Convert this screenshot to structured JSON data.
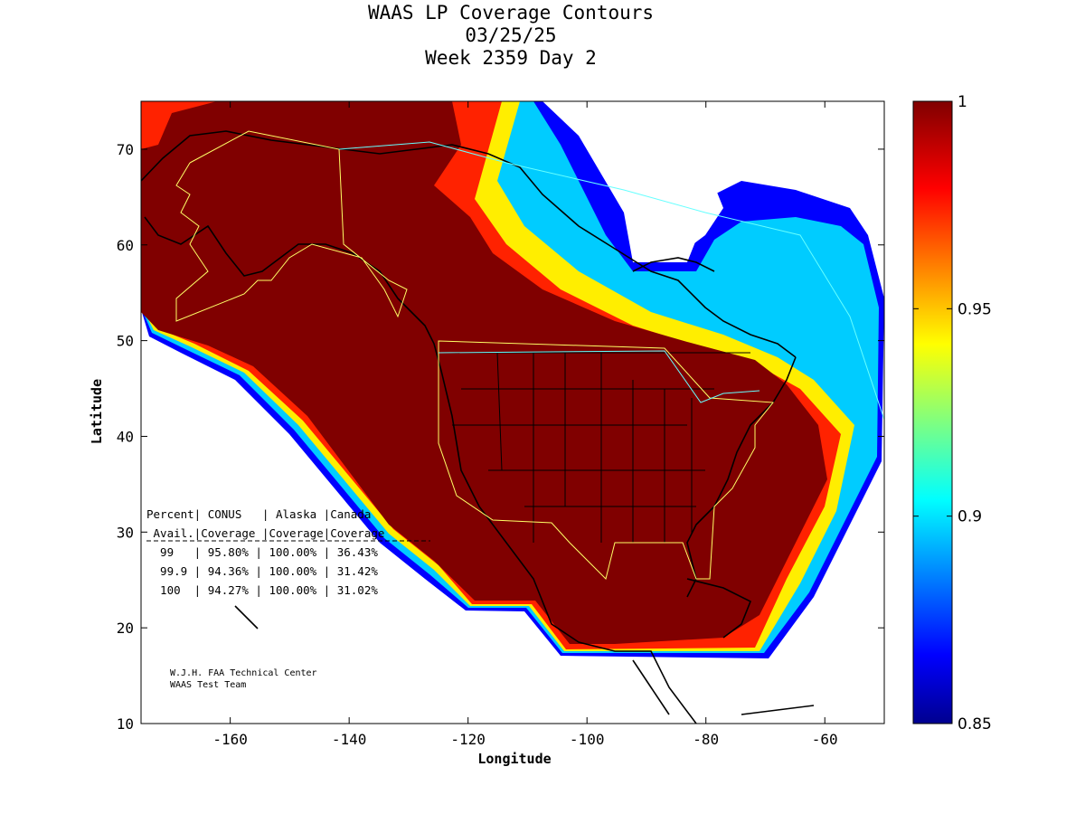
{
  "title": {
    "line1": "WAAS LP Coverage Contours",
    "line2": "03/25/25",
    "line3": "Week 2359 Day 2"
  },
  "axes": {
    "xlabel": "Longitude",
    "ylabel": "Latitude",
    "xlim": [
      -175,
      -50
    ],
    "ylim": [
      10,
      75
    ],
    "xticks": [
      -160,
      -140,
      -120,
      -100,
      -80,
      -60
    ],
    "yticks": [
      10,
      20,
      30,
      40,
      50,
      60,
      70
    ],
    "xtick_labels": [
      "-160",
      "-140",
      "-120",
      "-100",
      "-80",
      "-60"
    ],
    "ytick_labels": [
      "10",
      "20",
      "30",
      "40",
      "50",
      "60",
      "70"
    ]
  },
  "colorbar": {
    "min": 0.85,
    "max": 1,
    "ticks": [
      0.85,
      0.9,
      0.95,
      1
    ],
    "tick_labels": [
      "0.85",
      "0.9",
      "0.95",
      "1"
    ],
    "colormap": "jet"
  },
  "stats_table": {
    "header1": "Percent| CONUS   | Alaska |Canada",
    "header2": " Avail.|Coverage |Coverage|Coverage",
    "rows": [
      "  99   | 95.80% | 100.00% | 36.43%",
      "  99.9 | 94.36% | 100.00% | 31.42%",
      "  100  | 94.27% | 100.00% | 31.02%"
    ]
  },
  "credits": {
    "line1": "W.J.H. FAA Technical Center",
    "line2": "WAAS Test Team"
  },
  "colors": {
    "full_coverage": "#800000",
    "service_boundary": "#ffff66",
    "alaska_boundary": "#66ffff",
    "coastline": "#000000"
  }
}
